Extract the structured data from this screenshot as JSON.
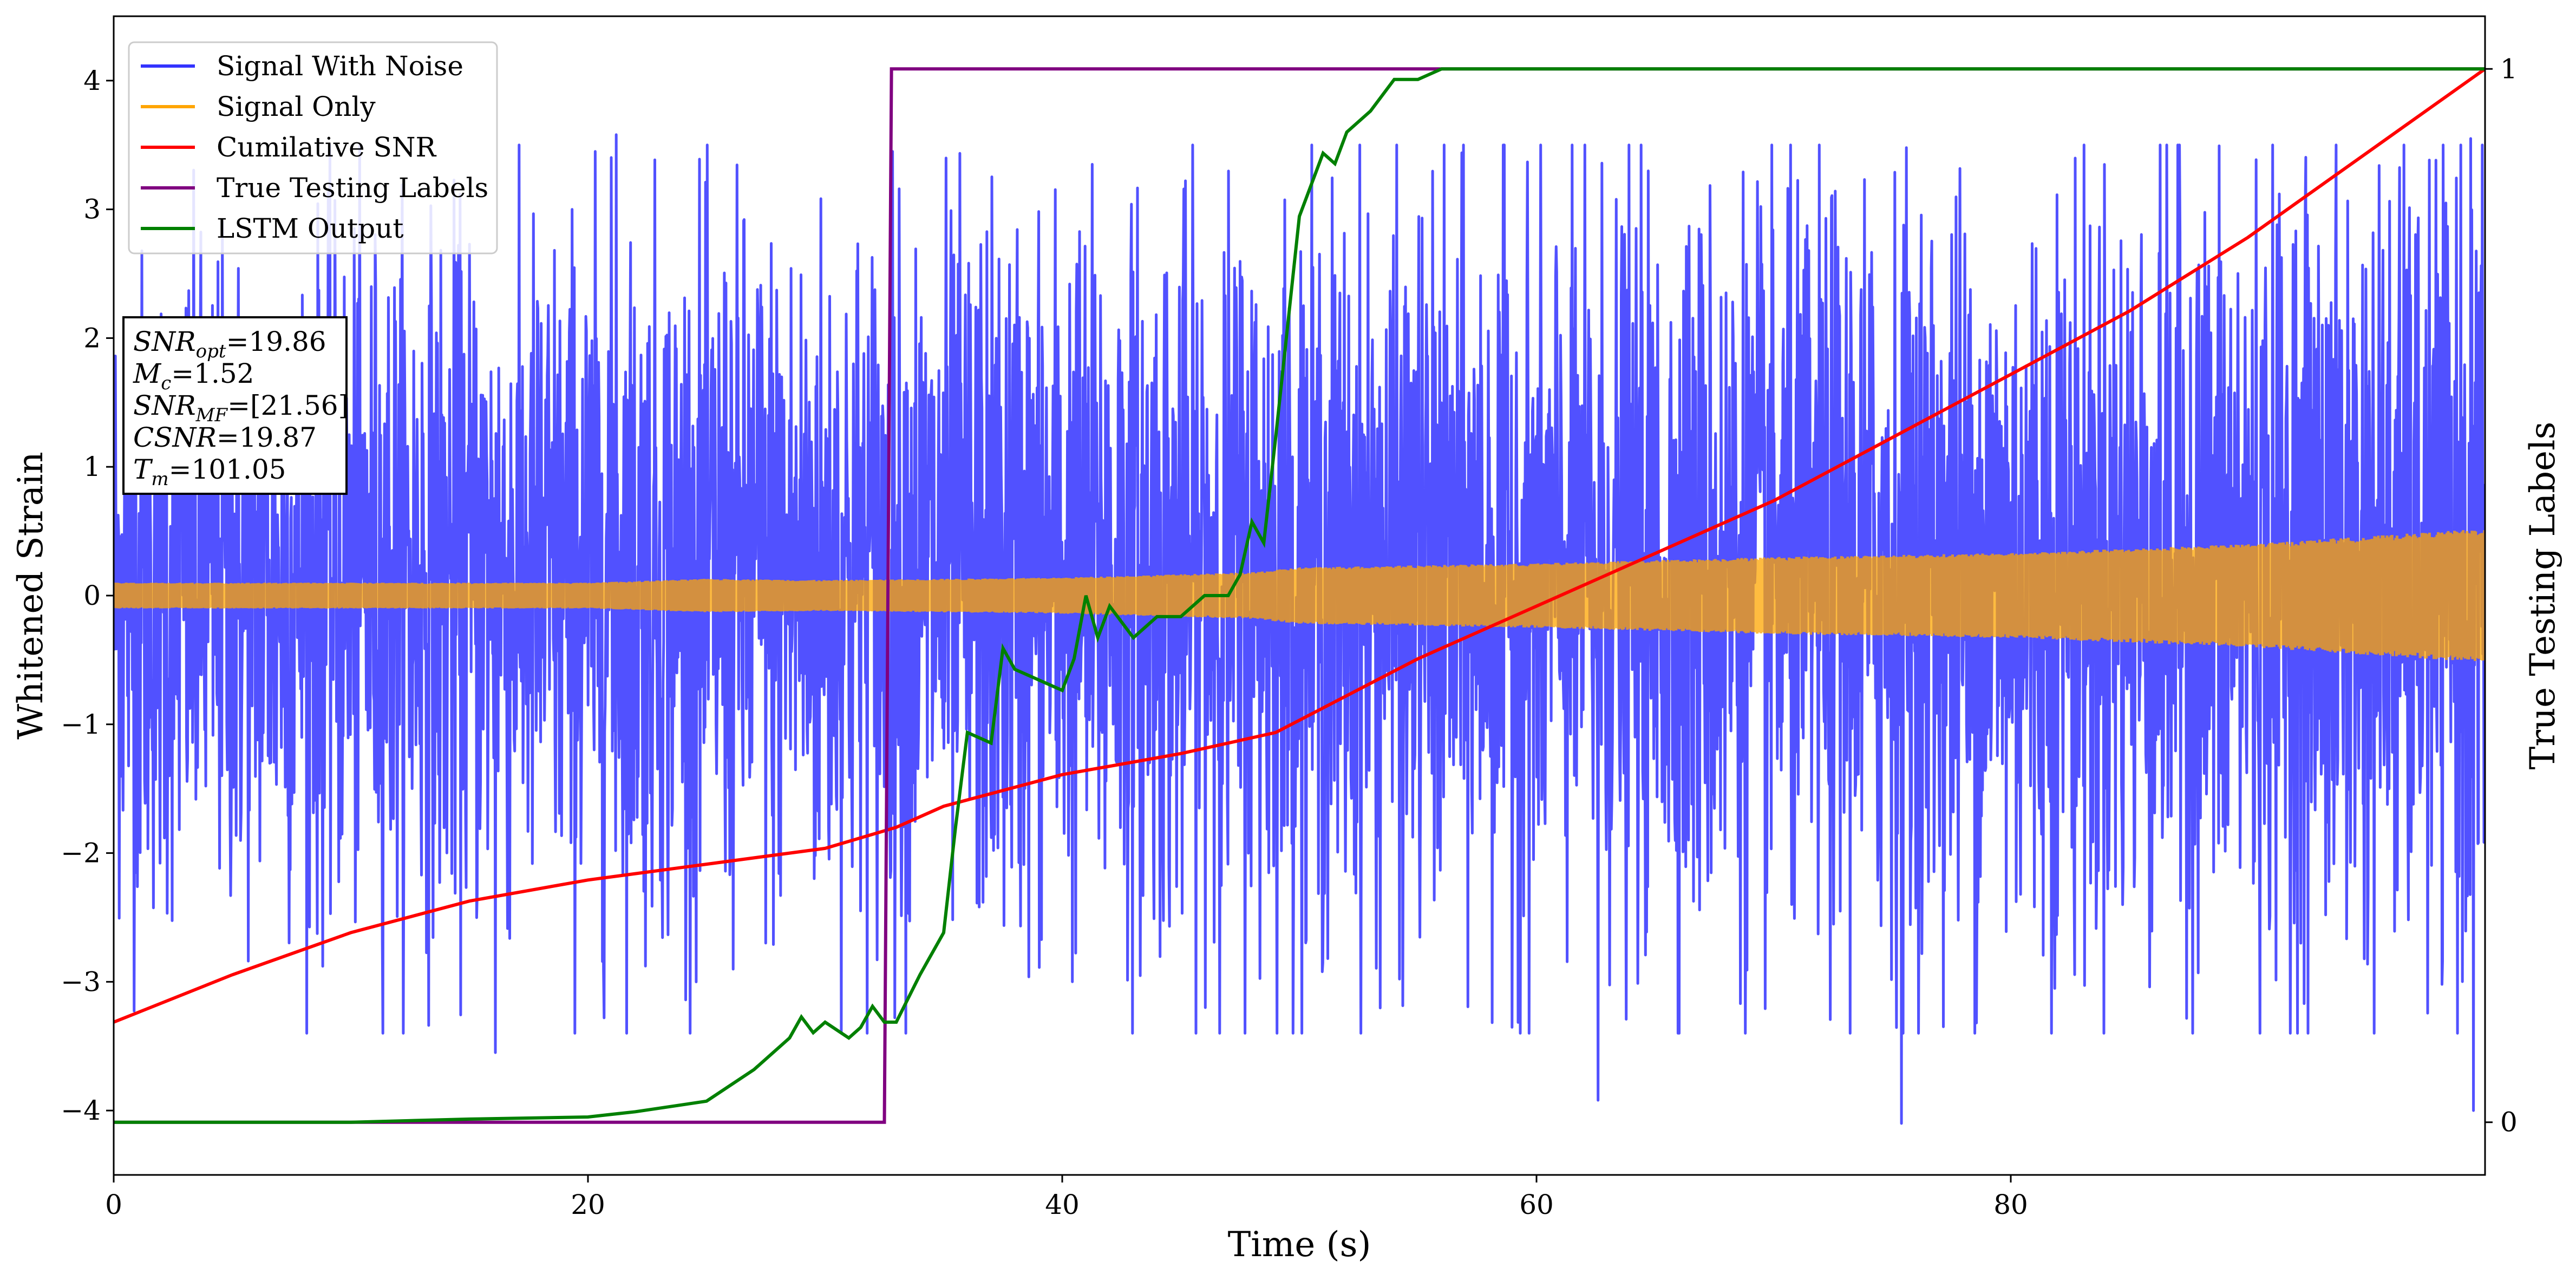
{
  "chart_data": {
    "type": "line",
    "title": "",
    "xlabel": "Time (s)",
    "ylabel": "Whitened Strain",
    "ylabel_right": "True Testing Labels",
    "xlim": [
      0,
      100
    ],
    "ylim": [
      -4.5,
      4.5
    ],
    "ylim_right": [
      -0.05,
      1.05
    ],
    "xticks": [
      0,
      20,
      40,
      60,
      80
    ],
    "xtick_labels": [
      "0",
      "20",
      "40",
      "60",
      "80"
    ],
    "yticks": [
      -4,
      -3,
      -2,
      -1,
      0,
      1,
      2,
      3,
      4
    ],
    "ytick_labels": [
      "−4",
      "−3",
      "−2",
      "−1",
      "0",
      "1",
      "2",
      "3",
      "4"
    ],
    "yticks_right": [
      0,
      1
    ],
    "ytick_labels_right": [
      "0",
      "1"
    ],
    "grid": false,
    "legend_position": "top-left",
    "series": [
      {
        "name": "Signal With Noise",
        "axis": "left",
        "color": "#3333ff",
        "x": [
          0,
          20,
          40,
          60,
          80,
          100
        ],
        "y_envelope_upper": [
          2.4,
          2.6,
          2.7,
          2.7,
          2.9,
          3.0
        ],
        "y_envelope_lower": [
          -2.2,
          -2.3,
          -2.4,
          -2.4,
          -2.5,
          -2.6
        ],
        "y_peaks": [
          {
            "x": 16.1,
            "y": -3.55
          },
          {
            "x": 21.2,
            "y": 3.58
          },
          {
            "x": 62.6,
            "y": -3.92
          },
          {
            "x": 75.4,
            "y": -4.1
          },
          {
            "x": 99.5,
            "y": -4.0
          },
          {
            "x": 99.4,
            "y": 3.55
          }
        ]
      },
      {
        "name": "Signal Only",
        "axis": "left",
        "color": "#ffa500",
        "x": [
          0,
          10,
          20,
          25,
          30,
          40,
          48,
          50,
          60,
          70,
          80,
          90,
          100
        ],
        "y_amplitude": [
          0.1,
          0.1,
          0.1,
          0.13,
          0.12,
          0.14,
          0.18,
          0.22,
          0.25,
          0.3,
          0.33,
          0.4,
          0.52
        ]
      },
      {
        "name": "Cumilative SNR",
        "axis": "right",
        "color": "#ff0000",
        "x": [
          0,
          5,
          10,
          15,
          20,
          25,
          30,
          33,
          35,
          40,
          45,
          49,
          55,
          60,
          65,
          70,
          75,
          80,
          85,
          90,
          95,
          100
        ],
        "y": [
          0.095,
          0.14,
          0.18,
          0.21,
          0.23,
          0.245,
          0.26,
          0.28,
          0.3,
          0.33,
          0.35,
          0.37,
          0.44,
          0.49,
          0.54,
          0.59,
          0.65,
          0.71,
          0.77,
          0.84,
          0.92,
          1.0
        ]
      },
      {
        "name": "True Testing Labels",
        "axis": "right",
        "color": "#800080",
        "x": [
          0,
          32.5,
          32.8,
          100
        ],
        "y": [
          0,
          0,
          1,
          1
        ]
      },
      {
        "name": "LSTM Output",
        "axis": "right",
        "color": "#008000",
        "x": [
          0,
          10,
          15,
          20,
          22,
          25,
          27,
          28.5,
          29,
          29.5,
          30,
          31,
          31.5,
          32,
          32.5,
          33,
          34,
          35,
          35.5,
          36,
          37,
          37.5,
          38,
          39,
          40,
          40.5,
          41,
          41.5,
          42,
          43,
          44,
          45,
          46,
          47,
          47.5,
          48,
          48.5,
          49,
          50,
          51,
          51.5,
          52,
          53,
          54,
          55,
          56,
          58,
          60,
          70,
          80,
          90,
          100
        ],
        "y": [
          0,
          0,
          0.003,
          0.005,
          0.01,
          0.02,
          0.05,
          0.08,
          0.1,
          0.085,
          0.095,
          0.08,
          0.09,
          0.11,
          0.095,
          0.095,
          0.14,
          0.18,
          0.28,
          0.37,
          0.36,
          0.45,
          0.43,
          0.42,
          0.41,
          0.44,
          0.5,
          0.46,
          0.49,
          0.46,
          0.48,
          0.48,
          0.5,
          0.5,
          0.52,
          0.57,
          0.55,
          0.65,
          0.86,
          0.92,
          0.91,
          0.94,
          0.96,
          0.99,
          0.99,
          1.0,
          1.0,
          1.0,
          1.0,
          1.0,
          1.0,
          1.0
        ]
      }
    ],
    "annotation": {
      "lines": [
        {
          "base": "SNR",
          "sub": "opt",
          "value": "=19.86"
        },
        {
          "base": "M",
          "sub": "c",
          "value": "=1.52"
        },
        {
          "base": "SNR",
          "sub": "MF",
          "value": "=[21.56]"
        },
        {
          "base": "CSNR",
          "sub": "",
          "value": "=19.87"
        },
        {
          "base": "T",
          "sub": "m",
          "value": "=101.05"
        }
      ]
    }
  }
}
